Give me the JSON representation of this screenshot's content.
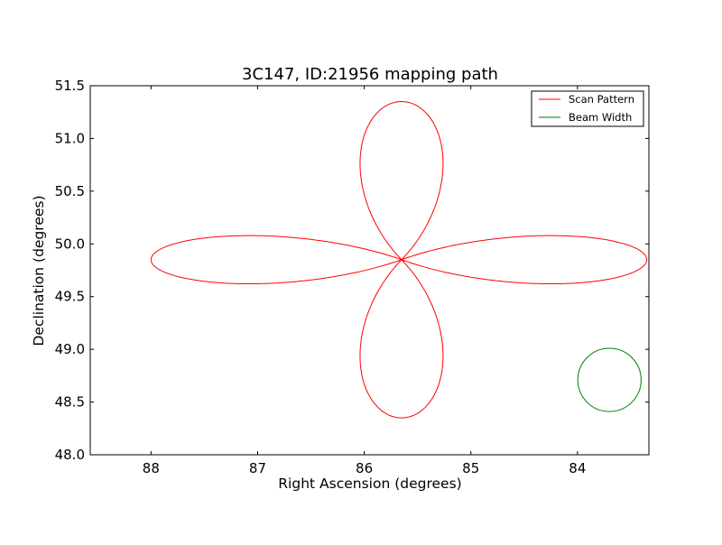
{
  "chart_data": {
    "type": "line",
    "title": "3C147, ID:21956 mapping path",
    "xlabel": "Right Ascension (degrees)",
    "ylabel": "Declination (degrees)",
    "xlim": [
      88.57,
      83.33
    ],
    "ylim": [
      48.0,
      51.5
    ],
    "x_inverted": true,
    "xticks": [
      88,
      87,
      86,
      85,
      84
    ],
    "xtick_labels": [
      "88",
      "87",
      "86",
      "85",
      "84"
    ],
    "yticks": [
      48.0,
      48.5,
      49.0,
      49.5,
      50.0,
      50.5,
      51.0,
      51.5
    ],
    "ytick_labels": [
      "48.0",
      "48.5",
      "49.0",
      "49.5",
      "50.0",
      "50.5",
      "51.0",
      "51.5"
    ],
    "grid": false,
    "legend_position": "top-right",
    "center": [
      85.65,
      49.85
    ],
    "series": [
      {
        "name": "Scan Pattern",
        "color": "#ff0000",
        "description_shape": "four-petal rose curve (clover) centered at RA 85.65, Dec 49.85",
        "petal_extents": {
          "top_dec": 51.35,
          "bottom_dec": 48.35,
          "left_ra": 88.0,
          "right_ra": 83.35,
          "half_width_ra": 0.65,
          "half_width_dec": 0.42
        }
      },
      {
        "name": "Beam Width",
        "color": "#008000",
        "shape": "circle",
        "center": [
          83.7,
          48.71
        ],
        "radius_dec": 0.3
      }
    ]
  }
}
